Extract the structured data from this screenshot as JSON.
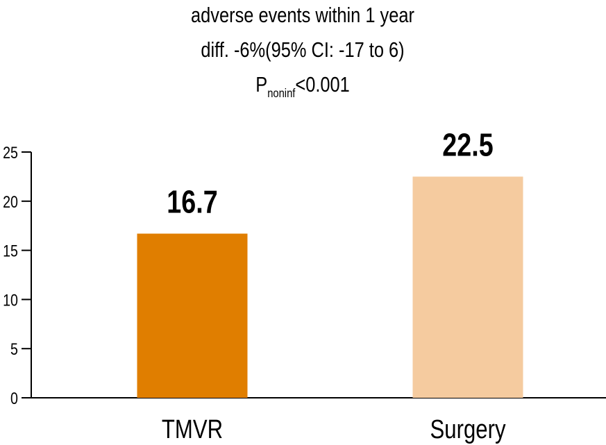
{
  "chart_data": {
    "type": "bar",
    "title_lines": [
      "adverse events within 1 year",
      "diff. -6%(95% CI: -17 to 6)"
    ],
    "p_value": {
      "prefix": "P",
      "subscript": "noninf",
      "suffix": "<0.001"
    },
    "categories": [
      "TMVR",
      "Surgery"
    ],
    "values": [
      16.7,
      22.5
    ],
    "data_labels": [
      "16.7",
      "22.5"
    ],
    "colors": [
      "#e07e00",
      "#f5cb9f"
    ],
    "xlabel": "",
    "ylabel": "",
    "ylim": [
      0,
      25
    ],
    "yticks": [
      0,
      5,
      10,
      15,
      20,
      25
    ],
    "grid": false,
    "legend": "none"
  }
}
